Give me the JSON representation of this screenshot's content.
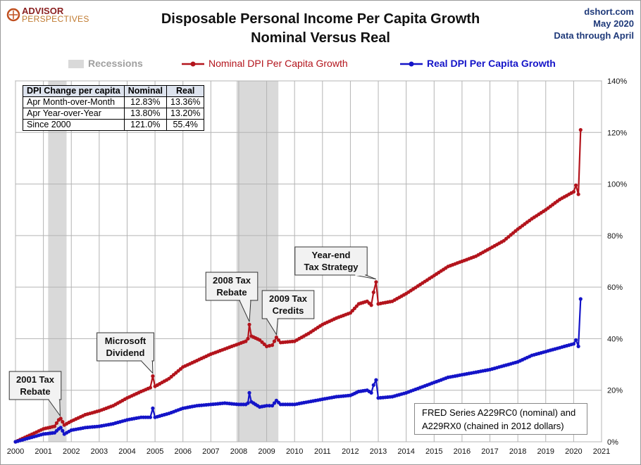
{
  "header": {
    "logo_line1": "ADVISOR",
    "logo_line2": "PERSPECTIVES",
    "site": "dshort.com",
    "date": "May 2020",
    "data_through": "Data through April"
  },
  "table": {
    "headers": [
      "DPI Change per capita",
      "Nominal",
      "Real"
    ],
    "rows": [
      [
        "Apr Month-over-Month",
        "12.83%",
        "13.36%"
      ],
      [
        "Apr Year-over-Year",
        "13.80%",
        "13.20%"
      ],
      [
        "Since 2000",
        "121.0%",
        "55.4%"
      ]
    ]
  },
  "note": {
    "line1": "FRED Series A229RC0 (nominal)  and",
    "line2": "A229RX0 (chained in 2012 dollars)"
  },
  "colors": {
    "nominal": "#b3141c",
    "real": "#1414c8",
    "recession": "#d9d9d9",
    "grid": "#b4b4b4",
    "callout_fill": "#f2f2f2"
  },
  "chart_data": {
    "type": "line",
    "title": "Disposable Personal Income Per Capita Growth",
    "subtitle": "Nominal Versus Real",
    "xlim": [
      2000,
      2021
    ],
    "ylim": [
      0,
      140
    ],
    "x_ticks": [
      "2000",
      "2001",
      "2002",
      "2003",
      "2004",
      "2005",
      "2006",
      "2007",
      "2008",
      "2009",
      "2010",
      "2011",
      "2012",
      "2013",
      "2014",
      "2015",
      "2016",
      "2017",
      "2018",
      "2019",
      "2020",
      "2021"
    ],
    "y_ticks": [
      "0%",
      "20%",
      "40%",
      "60%",
      "80%",
      "100%",
      "120%",
      "140%"
    ],
    "grid": true,
    "legend_position": "top",
    "recessions": {
      "label": "Recessions",
      "periods": [
        [
          2001.17,
          2001.83
        ],
        [
          2007.92,
          2009.42
        ]
      ]
    },
    "series": [
      {
        "name": "Nominal DPI Per Capita Growth",
        "points": [
          [
            2000.0,
            0
          ],
          [
            2000.5,
            2.5
          ],
          [
            2001.0,
            5.0
          ],
          [
            2001.4,
            6.0
          ],
          [
            2001.55,
            8.5
          ],
          [
            2001.62,
            9.0
          ],
          [
            2001.75,
            6.5
          ],
          [
            2002.0,
            8.0
          ],
          [
            2002.5,
            10.5
          ],
          [
            2003.0,
            12.0
          ],
          [
            2003.5,
            14.0
          ],
          [
            2004.0,
            17.0
          ],
          [
            2004.5,
            19.5
          ],
          [
            2004.83,
            21.0
          ],
          [
            2004.92,
            25.5
          ],
          [
            2005.0,
            21.5
          ],
          [
            2005.5,
            24.5
          ],
          [
            2006.0,
            29.0
          ],
          [
            2006.5,
            31.5
          ],
          [
            2007.0,
            34.0
          ],
          [
            2007.5,
            36.0
          ],
          [
            2008.0,
            38.0
          ],
          [
            2008.25,
            39.0
          ],
          [
            2008.33,
            40.0
          ],
          [
            2008.38,
            45.5
          ],
          [
            2008.45,
            41.0
          ],
          [
            2008.75,
            39.5
          ],
          [
            2009.0,
            37.0
          ],
          [
            2009.2,
            37.5
          ],
          [
            2009.35,
            40.5
          ],
          [
            2009.5,
            38.5
          ],
          [
            2010.0,
            39.0
          ],
          [
            2010.5,
            42.0
          ],
          [
            2011.0,
            45.5
          ],
          [
            2011.5,
            48.0
          ],
          [
            2012.0,
            50.0
          ],
          [
            2012.3,
            53.5
          ],
          [
            2012.6,
            54.5
          ],
          [
            2012.75,
            53.0
          ],
          [
            2012.83,
            58.0
          ],
          [
            2012.92,
            62.0
          ],
          [
            2013.0,
            53.5
          ],
          [
            2013.5,
            54.5
          ],
          [
            2014.0,
            57.5
          ],
          [
            2014.5,
            61.0
          ],
          [
            2015.0,
            64.5
          ],
          [
            2015.5,
            68.0
          ],
          [
            2016.0,
            70.0
          ],
          [
            2016.5,
            72.0
          ],
          [
            2017.0,
            75.0
          ],
          [
            2017.5,
            78.0
          ],
          [
            2018.0,
            82.5
          ],
          [
            2018.5,
            86.5
          ],
          [
            2019.0,
            90.0
          ],
          [
            2019.5,
            94.0
          ],
          [
            2020.0,
            97.0
          ],
          [
            2020.08,
            99.5
          ],
          [
            2020.17,
            96.0
          ],
          [
            2020.25,
            121.0
          ]
        ]
      },
      {
        "name": "Real DPI Per Capita Growth",
        "points": [
          [
            2000.0,
            0
          ],
          [
            2000.5,
            1.5
          ],
          [
            2001.0,
            3.0
          ],
          [
            2001.4,
            3.5
          ],
          [
            2001.55,
            5.0
          ],
          [
            2001.62,
            5.5
          ],
          [
            2001.75,
            3.0
          ],
          [
            2002.0,
            4.5
          ],
          [
            2002.5,
            5.5
          ],
          [
            2003.0,
            6.0
          ],
          [
            2003.5,
            7.0
          ],
          [
            2004.0,
            8.5
          ],
          [
            2004.5,
            9.5
          ],
          [
            2004.83,
            9.5
          ],
          [
            2004.92,
            13.0
          ],
          [
            2005.0,
            9.5
          ],
          [
            2005.5,
            11.0
          ],
          [
            2006.0,
            13.0
          ],
          [
            2006.5,
            14.0
          ],
          [
            2007.0,
            14.5
          ],
          [
            2007.5,
            15.0
          ],
          [
            2008.0,
            14.5
          ],
          [
            2008.25,
            14.5
          ],
          [
            2008.33,
            15.0
          ],
          [
            2008.38,
            19.0
          ],
          [
            2008.45,
            15.5
          ],
          [
            2008.75,
            13.5
          ],
          [
            2009.0,
            14.0
          ],
          [
            2009.2,
            14.0
          ],
          [
            2009.35,
            16.0
          ],
          [
            2009.5,
            14.5
          ],
          [
            2010.0,
            14.5
          ],
          [
            2010.5,
            15.5
          ],
          [
            2011.0,
            16.5
          ],
          [
            2011.5,
            17.5
          ],
          [
            2012.0,
            18.0
          ],
          [
            2012.3,
            19.5
          ],
          [
            2012.6,
            20.0
          ],
          [
            2012.75,
            19.0
          ],
          [
            2012.83,
            22.0
          ],
          [
            2012.92,
            24.0
          ],
          [
            2013.0,
            17.0
          ],
          [
            2013.5,
            17.5
          ],
          [
            2014.0,
            19.0
          ],
          [
            2014.5,
            21.0
          ],
          [
            2015.0,
            23.0
          ],
          [
            2015.5,
            25.0
          ],
          [
            2016.0,
            26.0
          ],
          [
            2016.5,
            27.0
          ],
          [
            2017.0,
            28.0
          ],
          [
            2017.5,
            29.5
          ],
          [
            2018.0,
            31.0
          ],
          [
            2018.5,
            33.5
          ],
          [
            2019.0,
            35.0
          ],
          [
            2019.5,
            36.5
          ],
          [
            2020.0,
            38.0
          ],
          [
            2020.08,
            39.5
          ],
          [
            2020.17,
            37.0
          ],
          [
            2020.25,
            55.4
          ]
        ]
      }
    ],
    "annotations": [
      {
        "lines": [
          "2001 Tax",
          "Rebate"
        ],
        "target": [
          2001.6,
          9.0
        ]
      },
      {
        "lines": [
          "Microsoft",
          "Dividend"
        ],
        "target": [
          2004.92,
          25.5
        ]
      },
      {
        "lines": [
          "2008 Tax",
          "Rebate"
        ],
        "target": [
          2008.38,
          45.5
        ]
      },
      {
        "lines": [
          "2009 Tax",
          "Credits"
        ],
        "target": [
          2009.35,
          40.5
        ]
      },
      {
        "lines": [
          "Year-end",
          "Tax Strategy"
        ],
        "target": [
          2012.92,
          62.0
        ]
      }
    ]
  }
}
